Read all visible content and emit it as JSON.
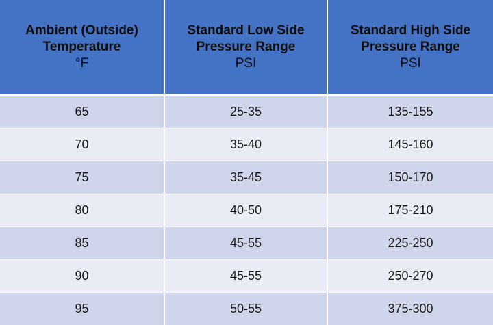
{
  "table": {
    "header": [
      {
        "lines": [
          "Ambient (Outside)",
          "Temperature"
        ],
        "unit": "°F"
      },
      {
        "lines": [
          "Standard Low Side",
          "Pressure Range"
        ],
        "unit": "PSI"
      },
      {
        "lines": [
          "Standard High Side",
          "Pressure Range"
        ],
        "unit": "PSI"
      }
    ],
    "rows": [
      [
        65,
        "25-35",
        "135-155"
      ],
      [
        70,
        "35-40",
        "145-160"
      ],
      [
        75,
        "35-45",
        "150-170"
      ],
      [
        80,
        "40-50",
        "175-210"
      ],
      [
        85,
        "45-55",
        "225-250"
      ],
      [
        90,
        "45-55",
        "250-270"
      ],
      [
        95,
        "50-55",
        "375-300"
      ]
    ]
  }
}
